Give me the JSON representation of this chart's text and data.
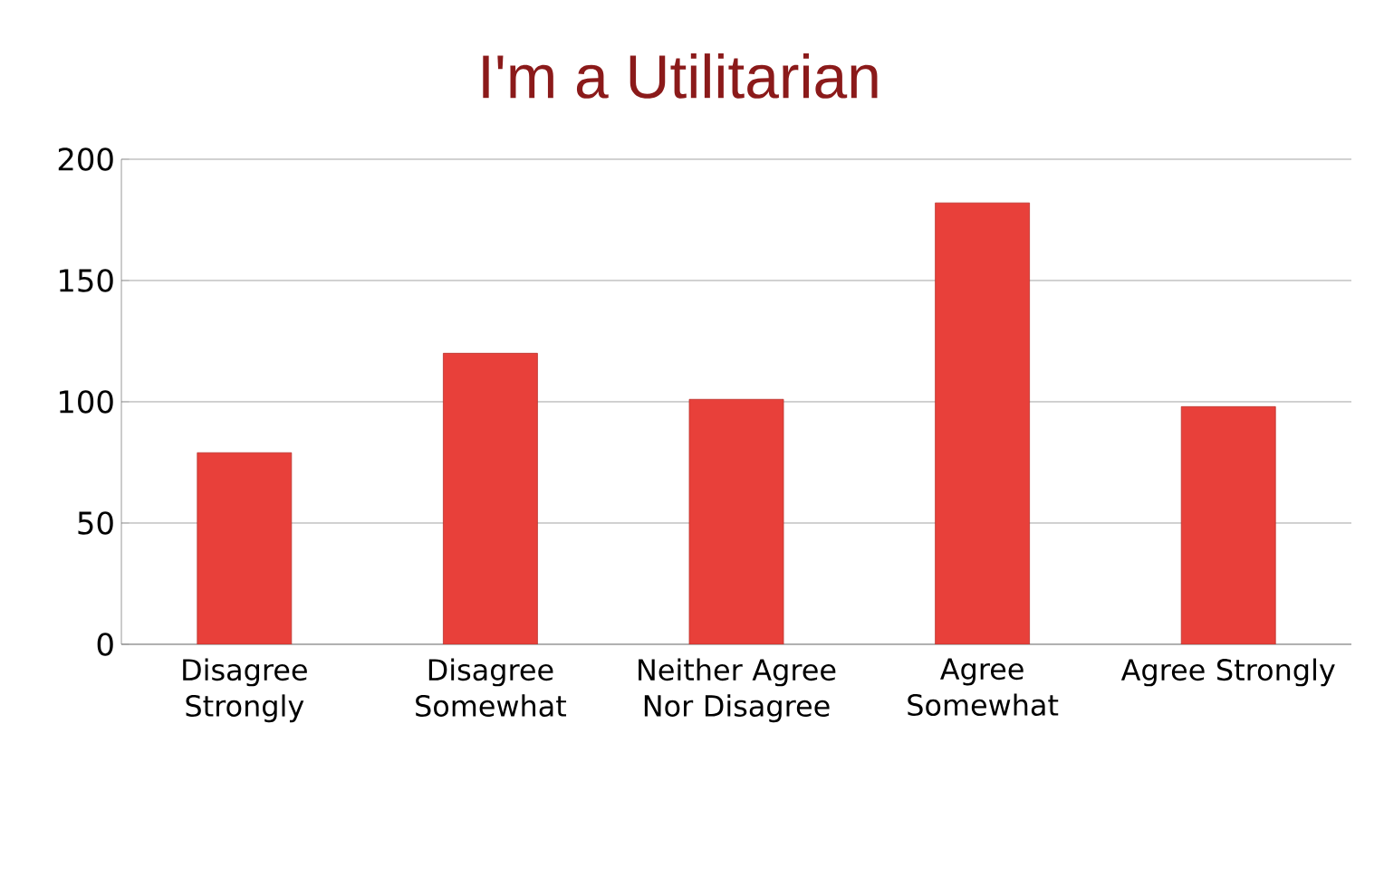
{
  "chart_data": {
    "type": "bar",
    "title": "I'm a Utilitarian",
    "categories": [
      "Disagree Strongly",
      "Disagree Somewhat",
      "Neither Agree Nor Disagree",
      "Agree Somewhat",
      "Agree Strongly"
    ],
    "values": [
      79,
      120,
      101,
      182,
      98
    ],
    "color": "#e8403a",
    "ylim": [
      0,
      200
    ],
    "yticks": [
      0,
      50,
      100,
      150,
      200
    ],
    "grid": "y"
  }
}
